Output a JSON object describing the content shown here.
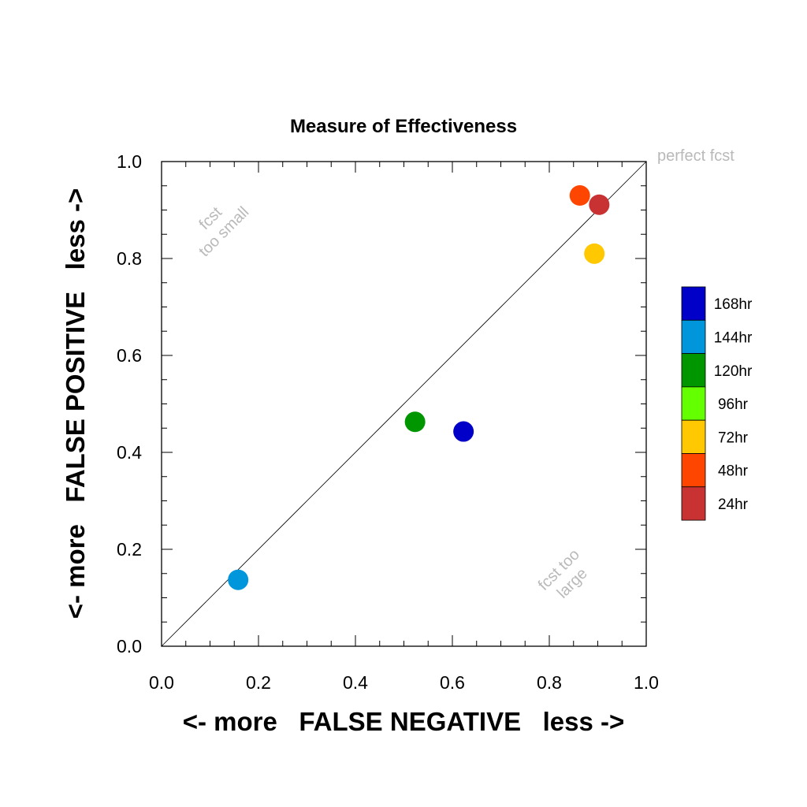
{
  "chart_data": {
    "type": "scatter",
    "title": "Measure of Effectiveness",
    "xlabel": "<- more   FALSE NEGATIVE   less ->",
    "ylabel": "<- more   FALSE POSITIVE   less ->",
    "xlim": [
      0,
      1
    ],
    "ylim": [
      0,
      1
    ],
    "x_ticks": [
      "0.0",
      "0.2",
      "0.4",
      "0.6",
      "0.8",
      "1.0"
    ],
    "y_ticks": [
      "0.0",
      "0.2",
      "0.4",
      "0.6",
      "0.8",
      "1.0"
    ],
    "grid": false,
    "diagonal_line": true,
    "annotations": {
      "perfect": "perfect fcst",
      "too_small_1": "fcst",
      "too_small_2": "too small",
      "too_large_1": "fcst too",
      "too_large_2": "large"
    },
    "legend_position": "right",
    "series": [
      {
        "name": "168hr",
        "color": "#0000c8",
        "x": 0.623,
        "y": 0.443
      },
      {
        "name": "144hr",
        "color": "#0096dc",
        "x": 0.158,
        "y": 0.137
      },
      {
        "name": "120hr",
        "color": "#009600",
        "x": 0.523,
        "y": 0.463
      },
      {
        "name": "96hr",
        "color": "#64ff00",
        "x": null,
        "y": null
      },
      {
        "name": "72hr",
        "color": "#ffc800",
        "x": 0.893,
        "y": 0.81
      },
      {
        "name": "48hr",
        "color": "#ff4600",
        "x": 0.863,
        "y": 0.93
      },
      {
        "name": "24hr",
        "color": "#c83232",
        "x": 0.903,
        "y": 0.911
      }
    ]
  }
}
